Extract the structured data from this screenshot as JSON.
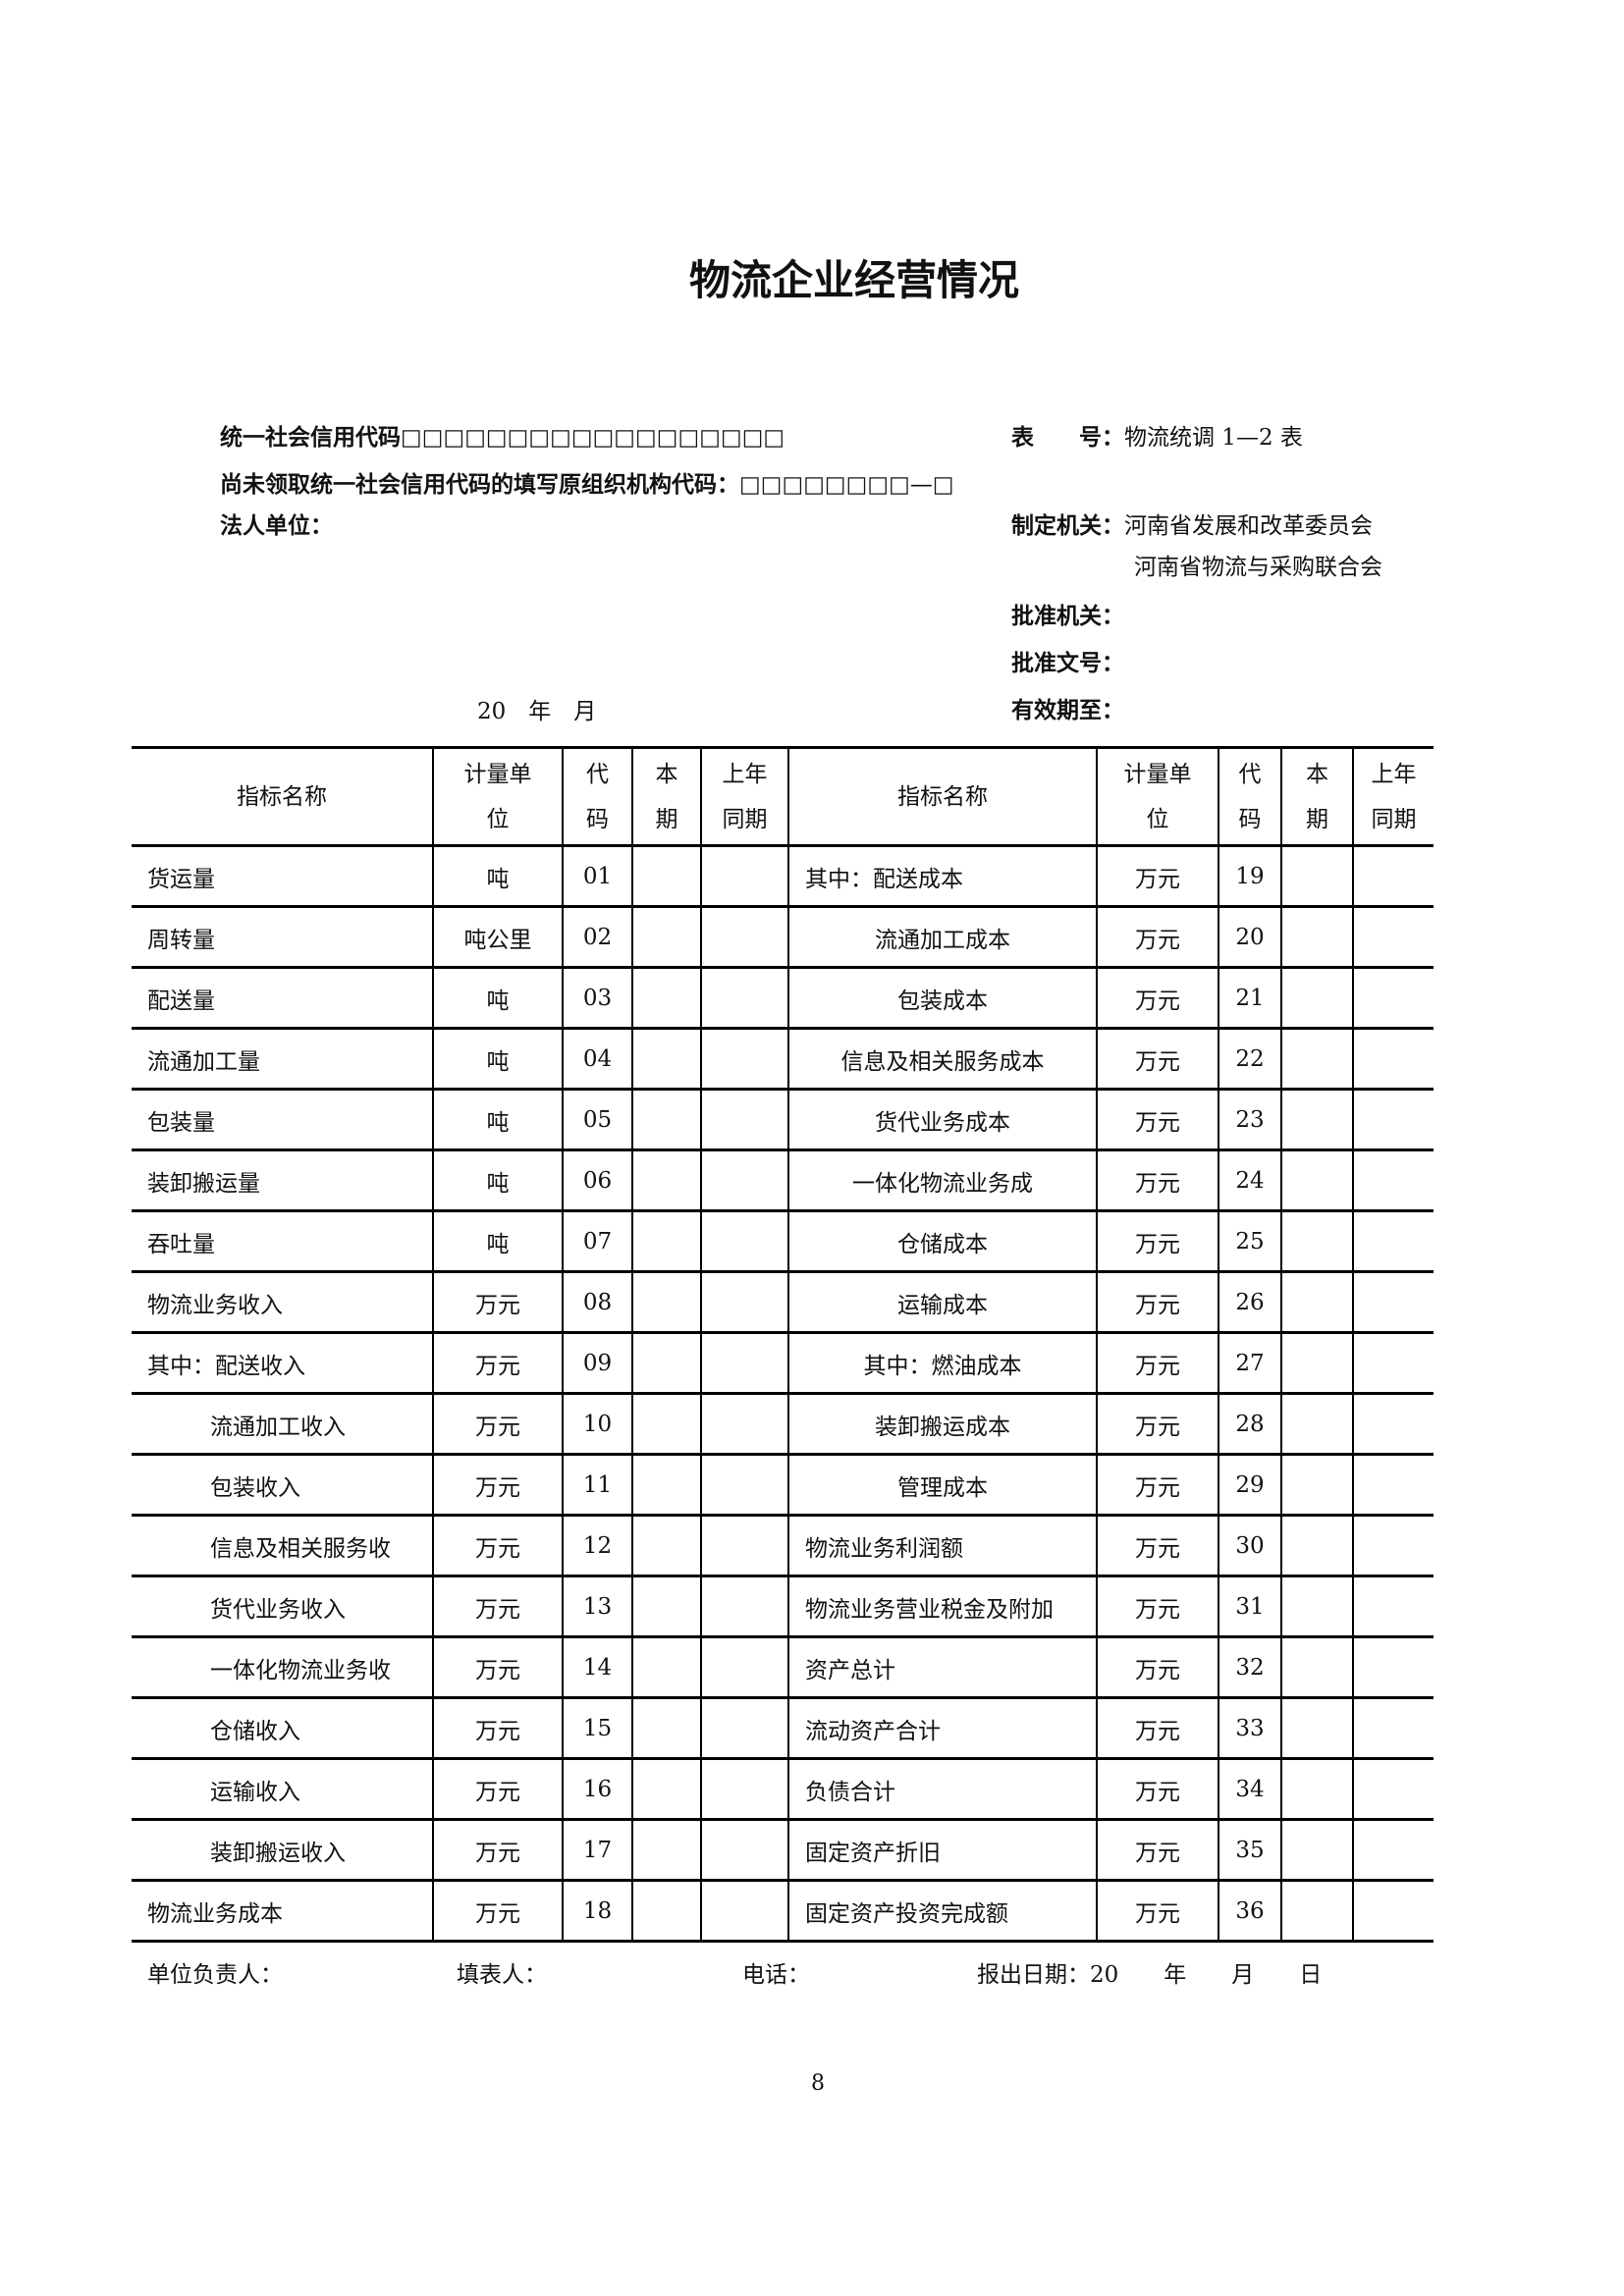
{
  "title": "物流企业经营情况",
  "header": {
    "credit_code_label": "统一社会信用代码",
    "credit_code_boxes": "□□□□□□□□□□□□□□□□□□",
    "org_code_label": "尚未领取统一社会信用代码的填写原组织机构代码：",
    "org_code_boxes": "□□□□□□□□—□",
    "legal_unit_label": "法人单位：",
    "date_line": "20　年　月",
    "table_no_label": "表　　号：",
    "table_no_value": "物流统调 1—2 表",
    "issuer_label": "制定机关：",
    "issuer_1": "河南省发展和改革委员会",
    "issuer_2": "河南省物流与采购联合会",
    "approver_label": "批准机关：",
    "approval_no_label": "批准文号：",
    "valid_until_label": "有效期至："
  },
  "table": {
    "columns": [
      "指标名称",
      "计量单位",
      "代码",
      "本期",
      "上年同期"
    ],
    "left": [
      {
        "name": "货运量",
        "unit": "吨",
        "code": "01"
      },
      {
        "name": "周转量",
        "unit": "吨公里",
        "code": "02"
      },
      {
        "name": "配送量",
        "unit": "吨",
        "code": "03"
      },
      {
        "name": "流通加工量",
        "unit": "吨",
        "code": "04"
      },
      {
        "name": "包装量",
        "unit": "吨",
        "code": "05"
      },
      {
        "name": "装卸搬运量",
        "unit": "吨",
        "code": "06"
      },
      {
        "name": "吞吐量",
        "unit": "吨",
        "code": "07"
      },
      {
        "name": "物流业务收入",
        "unit": "万元",
        "code": "08"
      },
      {
        "name": "其中：配送收入",
        "unit": "万元",
        "code": "09"
      },
      {
        "name": "流通加工收入",
        "unit": "万元",
        "code": "10"
      },
      {
        "name": "包装收入",
        "unit": "万元",
        "code": "11"
      },
      {
        "name": "信息及相关服务收",
        "unit": "万元",
        "code": "12"
      },
      {
        "name": "货代业务收入",
        "unit": "万元",
        "code": "13"
      },
      {
        "name": "一体化物流业务收",
        "unit": "万元",
        "code": "14"
      },
      {
        "name": "仓储收入",
        "unit": "万元",
        "code": "15"
      },
      {
        "name": "运输收入",
        "unit": "万元",
        "code": "16"
      },
      {
        "name": "装卸搬运收入",
        "unit": "万元",
        "code": "17"
      },
      {
        "name": "物流业务成本",
        "unit": "万元",
        "code": "18"
      }
    ],
    "right": [
      {
        "name": "其中：配送成本",
        "unit": "万元",
        "code": "19"
      },
      {
        "name": "流通加工成本",
        "unit": "万元",
        "code": "20"
      },
      {
        "name": "包装成本",
        "unit": "万元",
        "code": "21"
      },
      {
        "name": "信息及相关服务成本",
        "unit": "万元",
        "code": "22"
      },
      {
        "name": "货代业务成本",
        "unit": "万元",
        "code": "23"
      },
      {
        "name": "一体化物流业务成",
        "unit": "万元",
        "code": "24"
      },
      {
        "name": "仓储成本",
        "unit": "万元",
        "code": "25"
      },
      {
        "name": "运输成本",
        "unit": "万元",
        "code": "26"
      },
      {
        "name": "其中：燃油成本",
        "unit": "万元",
        "code": "27"
      },
      {
        "name": "装卸搬运成本",
        "unit": "万元",
        "code": "28"
      },
      {
        "name": "管理成本",
        "unit": "万元",
        "code": "29"
      },
      {
        "name": "物流业务利润额",
        "unit": "万元",
        "code": "30"
      },
      {
        "name": "物流业务营业税金及附加",
        "unit": "万元",
        "code": "31"
      },
      {
        "name": "资产总计",
        "unit": "万元",
        "code": "32"
      },
      {
        "name": "流动资产合计",
        "unit": "万元",
        "code": "33"
      },
      {
        "name": "负债合计",
        "unit": "万元",
        "code": "34"
      },
      {
        "name": "固定资产折旧",
        "unit": "万元",
        "code": "35"
      },
      {
        "name": "固定资产投资完成额",
        "unit": "万元",
        "code": "36"
      }
    ]
  },
  "footer": {
    "head_label": "单位负责人：",
    "filler_label": "填表人：",
    "phone_label": "电话：",
    "report_date": "报出日期：20　　年　　月　　日"
  },
  "page_number": "8"
}
